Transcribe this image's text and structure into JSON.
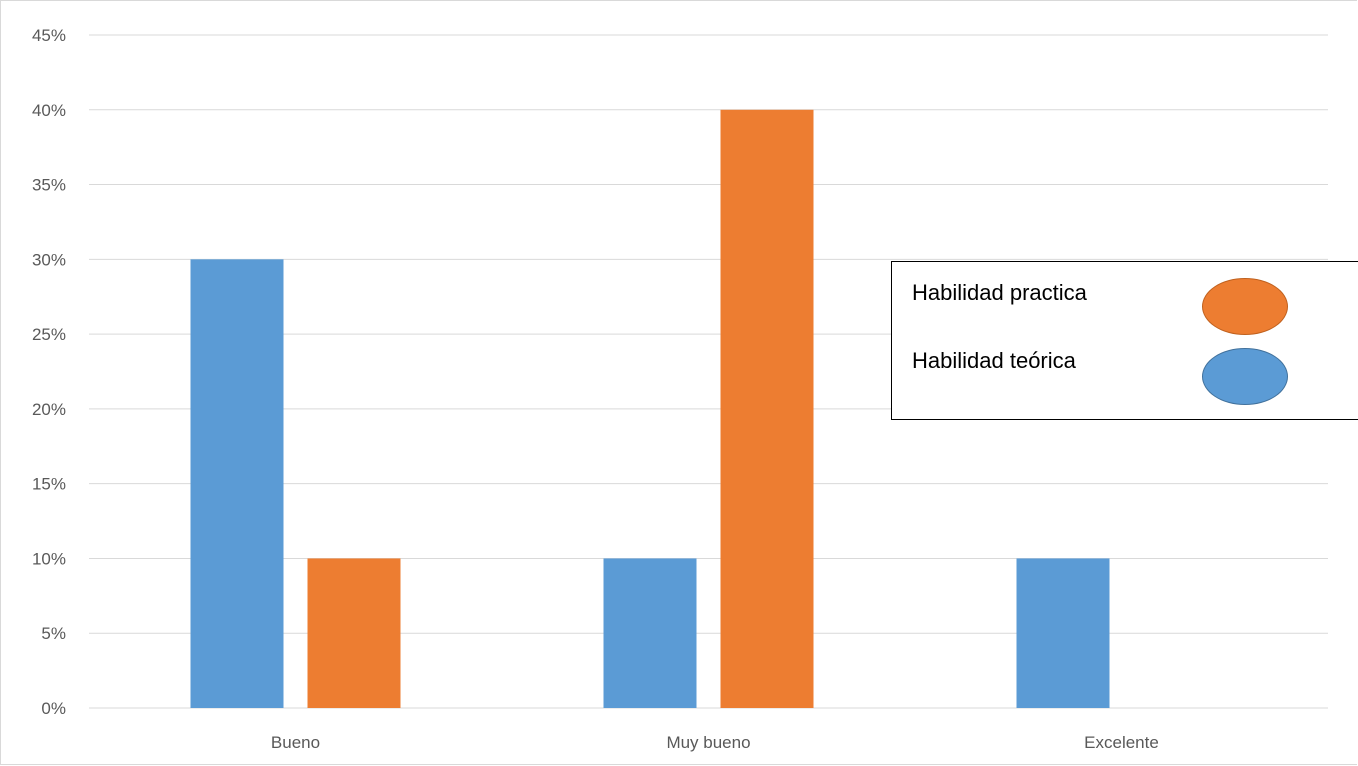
{
  "chart_data": {
    "type": "bar",
    "categories": [
      "Bueno",
      "Muy bueno",
      "Excelente"
    ],
    "series": [
      {
        "name": "Habilidad teórica",
        "color": "#5B9BD5",
        "values": [
          0.3,
          0.1,
          0.1
        ]
      },
      {
        "name": "Habilidad practica",
        "color": "#ED7D31",
        "values": [
          0.1,
          0.4,
          0.0
        ]
      }
    ],
    "yticks": [
      "0%",
      "5%",
      "10%",
      "15%",
      "20%",
      "25%",
      "30%",
      "35%",
      "40%",
      "45%"
    ],
    "ylim": [
      0,
      0.45
    ],
    "grid": true,
    "legend_placement": "right"
  },
  "legend": {
    "practica_label": "Habilidad practica",
    "teorica_label": "Habilidad teórica",
    "practica_color": "#ED7D31",
    "practica_border": "#C0611E",
    "teorica_color": "#5B9BD5",
    "teorica_border": "#41719C"
  }
}
